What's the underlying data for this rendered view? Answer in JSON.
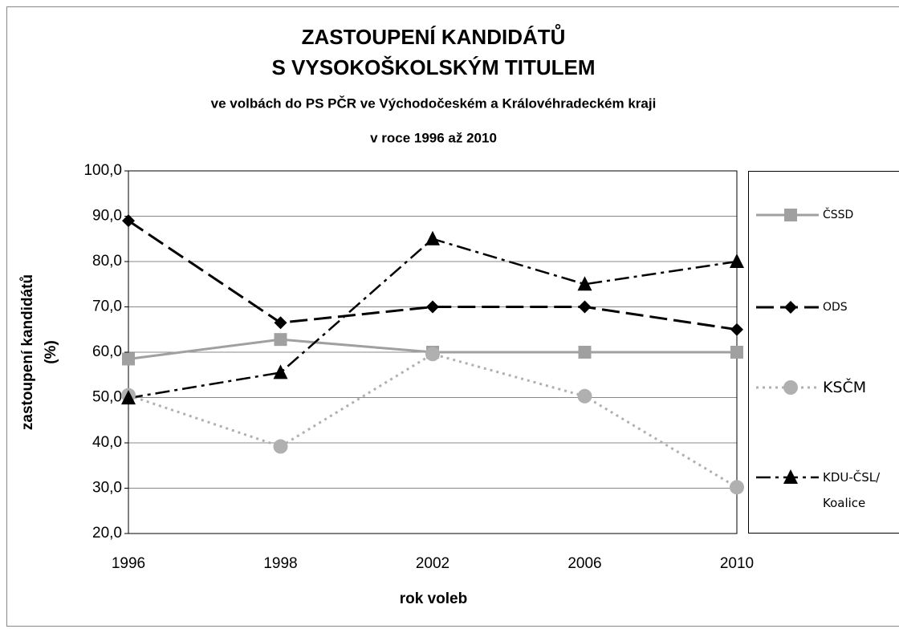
{
  "chart_data": {
    "type": "line",
    "title": [
      "ZASTOUPENÍ KANDIDÁTŮ",
      "S VYSOKOŠKOLSKÝM TITULEM"
    ],
    "subtitle": [
      "ve volbách do PS PČR ve Východočeském a Královéhradeckém kraji",
      "v roce 1996 až 2010"
    ],
    "x_label": "rok voleb",
    "y_label": [
      "zastoupení kandidátů",
      "(%)"
    ],
    "categories": [
      "1996",
      "1998",
      "2002",
      "2006",
      "2010"
    ],
    "ylim": [
      20,
      100
    ],
    "yticks": [
      {
        "value": 20,
        "label": "20,0"
      },
      {
        "value": 30,
        "label": "30,0"
      },
      {
        "value": 40,
        "label": "40,0"
      },
      {
        "value": 50,
        "label": "50,0"
      },
      {
        "value": 60,
        "label": "60,0"
      },
      {
        "value": 70,
        "label": "70,0"
      },
      {
        "value": 80,
        "label": "80,0"
      },
      {
        "value": 90,
        "label": "90,0"
      },
      {
        "value": 100,
        "label": "100,0"
      }
    ],
    "grid": true,
    "legend": "right",
    "series": [
      {
        "name": "ČSSD",
        "color": "#a0a0a0",
        "dash": "solid",
        "marker": "square",
        "values": [
          58.5,
          62.8,
          60,
          60,
          60
        ]
      },
      {
        "name": "ODS",
        "color": "#000000",
        "dash": "long-dash",
        "marker": "diamond",
        "values": [
          89,
          66.5,
          70,
          70,
          65
        ]
      },
      {
        "name": "KSČM",
        "color": "#b0b0b0",
        "dash": "dot",
        "marker": "circle",
        "values": [
          50.5,
          39.2,
          59.6,
          50.3,
          30.2
        ]
      },
      {
        "name": "KDU-ČSL/ Koalice",
        "color": "#000000",
        "dash": "dash-dot",
        "marker": "triangle",
        "values": [
          49.9,
          55.5,
          85,
          75,
          80
        ]
      }
    ]
  }
}
